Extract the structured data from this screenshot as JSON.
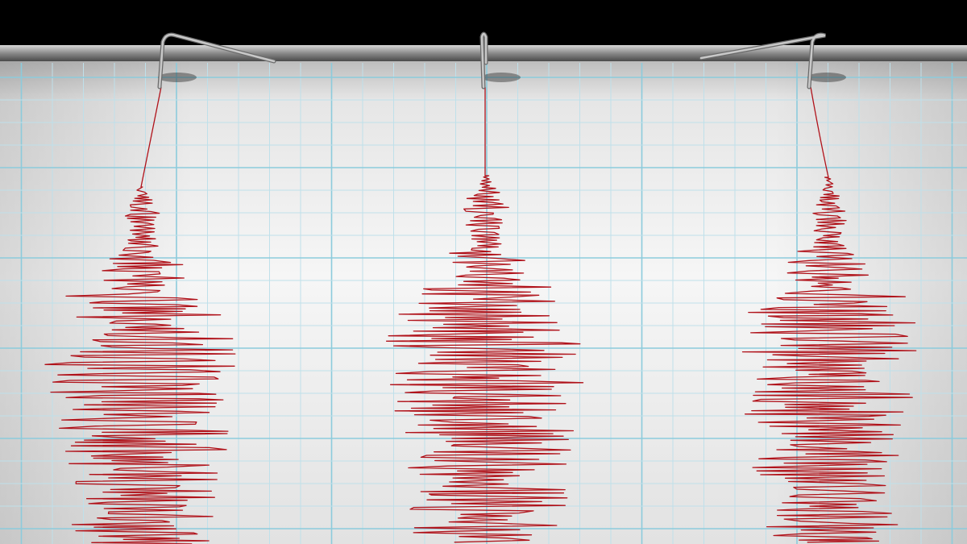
{
  "colors": {
    "background": "#000000",
    "paper": "#f4f4f4",
    "grid_minor": "#bfe0ea",
    "grid_major": "#8ccbdc",
    "trace": "#b0121a",
    "rod": "#9a9a9a",
    "needle": "#c8c8c8"
  },
  "subject": {
    "icon": "seismograph-icon",
    "traces": 3
  }
}
